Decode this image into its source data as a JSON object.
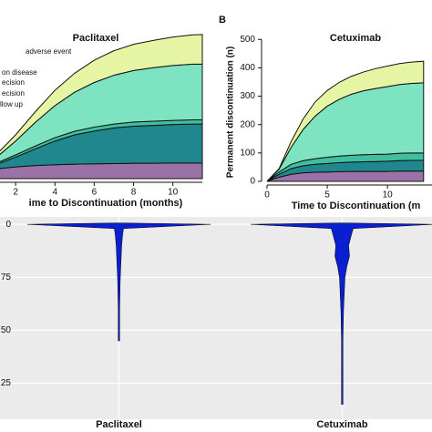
{
  "chart_data": [
    {
      "type": "area",
      "stacked": true,
      "title": "Paclitaxel",
      "x_label": "ime to Discontinuation (months)",
      "x": [
        0,
        1,
        2,
        3,
        4,
        5,
        6,
        7,
        8,
        9,
        10,
        11,
        11.5
      ],
      "xlim": [
        0,
        11.5
      ],
      "xticks": [
        2,
        4,
        6,
        8,
        10
      ],
      "ylim": [
        0,
        520
      ],
      "series": [
        {
          "name": "llow up",
          "color": "#9b72a8",
          "values": [
            20,
            35,
            42,
            47,
            50,
            52,
            53,
            54,
            55,
            55,
            56,
            56,
            56
          ]
        },
        {
          "name": "ecision",
          "color": "#21878f",
          "values": [
            5,
            15,
            35,
            60,
            85,
            105,
            118,
            128,
            133,
            136,
            138,
            140,
            140
          ]
        },
        {
          "name": "ecision",
          "color": "#3fbf9f",
          "values": [
            2,
            5,
            8,
            10,
            12,
            13,
            14,
            14,
            15,
            15,
            15,
            15,
            15
          ]
        },
        {
          "name": "on disease",
          "color": "#7ee3c1",
          "values": [
            5,
            20,
            50,
            85,
            115,
            140,
            160,
            175,
            185,
            192,
            197,
            200,
            200
          ]
        },
        {
          "name": "adverse event",
          "color": "#e6f5a3",
          "values": [
            3,
            10,
            22,
            38,
            55,
            68,
            80,
            88,
            94,
            98,
            102,
            105,
            106
          ]
        }
      ]
    },
    {
      "type": "area",
      "stacked": true,
      "panel_label": "B",
      "title": "Cetuximab",
      "x_label": "Time to Discontinuation (m",
      "y_label": "Permanent discontinuation (n)",
      "x": [
        0,
        1,
        2,
        3,
        4,
        5,
        6,
        7,
        8,
        9,
        10,
        11,
        12,
        13
      ],
      "xlim": [
        0,
        14
      ],
      "xticks": [
        0,
        5,
        10
      ],
      "ylim": [
        0,
        520
      ],
      "yticks": [
        0,
        100,
        200,
        300,
        400,
        500
      ],
      "series": [
        {
          "color": "#9b72a8",
          "values": [
            0,
            15,
            25,
            30,
            32,
            33,
            34,
            35,
            35,
            35,
            35,
            36,
            36,
            36
          ]
        },
        {
          "color": "#21878f",
          "values": [
            0,
            10,
            20,
            25,
            28,
            30,
            32,
            33,
            34,
            35,
            36,
            37,
            38,
            38
          ]
        },
        {
          "color": "#3fbf9f",
          "values": [
            0,
            8,
            15,
            18,
            20,
            22,
            23,
            24,
            25,
            25,
            25,
            26,
            26,
            26
          ]
        },
        {
          "color": "#7ee3c1",
          "values": [
            0,
            10,
            60,
            110,
            150,
            180,
            200,
            215,
            225,
            232,
            238,
            242,
            245,
            247
          ]
        },
        {
          "color": "#e6f5a3",
          "values": [
            0,
            2,
            20,
            37,
            50,
            55,
            60,
            63,
            66,
            70,
            72,
            74,
            75,
            76
          ]
        }
      ]
    },
    {
      "type": "violin",
      "categories": [
        "Paclitaxel",
        "Cetuximab"
      ],
      "color": "#0a1fd0",
      "background": "#ebebeb",
      "grid": true,
      "y": [
        100,
        98,
        95,
        90,
        85,
        80,
        75,
        70,
        65,
        60,
        55,
        50,
        45,
        40,
        35,
        30,
        25,
        20,
        15
      ],
      "ylim": [
        8,
        103.5
      ],
      "yticks": [
        {
          "value": 100,
          "label": "0"
        },
        75,
        50,
        25
      ],
      "series": [
        {
          "values": [
            1,
            0.05,
            0.04,
            0.03,
            0.025,
            0.02,
            0.015,
            0.012,
            0.01,
            0.008,
            0.006,
            0.005,
            0.004,
            null,
            null,
            null,
            null,
            null,
            null
          ]
        },
        {
          "values": [
            1,
            0.12,
            0.1,
            0.07,
            0.08,
            0.05,
            0.03,
            0.025,
            0.02,
            0.015,
            0.012,
            0.01,
            0.008,
            0.007,
            0.006,
            0.005,
            0.005,
            0.004,
            0.003
          ]
        }
      ]
    }
  ]
}
